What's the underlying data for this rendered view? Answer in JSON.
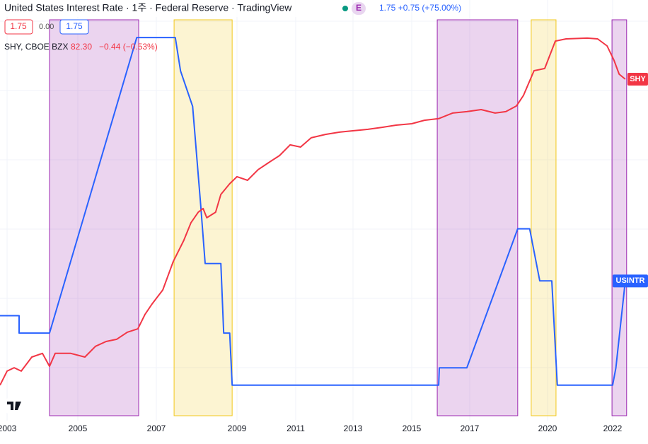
{
  "header": {
    "title": "United States Interest Rate · 1주 · Federal Reserve · TradingView",
    "badge": "E",
    "quote": "1.75 +0.75 (+75.00%)",
    "ohlc": [
      "1.75",
      "0.00",
      "1.75"
    ],
    "overlay_name": "SHY, CBOE BZX",
    "overlay_price": "82.30",
    "overlay_change": "−0.44 (−0.53%)"
  },
  "chart_data": {
    "type": "line",
    "xlim": [
      2002.8,
      2022.9
    ],
    "xticks": [
      2003,
      2005,
      2007,
      2009,
      2011,
      2013,
      2015,
      2017,
      2020,
      2022
    ],
    "ylim": [
      -0.26,
      5.79
    ],
    "y2lim": [
      65.35,
      86.23
    ],
    "series": [
      {
        "name": "USINTR",
        "color": "#2962ff",
        "x": [
          2002.8,
          2003.34,
          2003.34,
          2004.2,
          2006.5,
          2007.47,
          2007.6,
          2007.9,
          2008.1,
          2008.21,
          2008.6,
          2008.67,
          2008.82,
          2008.88,
          2015.93,
          2015.95,
          2016.9,
          2018.85,
          2019.31,
          2019.7,
          2020.13,
          2020.3,
          2022.0,
          2022.1,
          2022.39
        ],
        "values": [
          1.25,
          1.25,
          1.0,
          1.0,
          5.25,
          5.25,
          4.77,
          4.26,
          2.84,
          2.0,
          2.0,
          1.0,
          1.0,
          0.25,
          0.25,
          0.5,
          0.5,
          2.5,
          2.5,
          1.75,
          1.75,
          0.25,
          0.25,
          0.5,
          1.75
        ]
      },
      {
        "name": "SHY",
        "color": "#f23645",
        "axis": "y2",
        "x": [
          2002.8,
          2003.0,
          2003.2,
          2003.4,
          2003.7,
          2004.0,
          2004.2,
          2004.36,
          2004.8,
          2005.18,
          2005.45,
          2005.72,
          2005.99,
          2006.26,
          2006.53,
          2006.71,
          2006.89,
          2007.16,
          2007.42,
          2007.68,
          2007.86,
          2008.04,
          2008.16,
          2008.25,
          2008.47,
          2008.6,
          2008.82,
          2009.0,
          2009.36,
          2009.72,
          2010.08,
          2010.45,
          2010.81,
          2011.17,
          2011.54,
          2012.04,
          2012.53,
          2013.02,
          2013.51,
          2013.99,
          2014.47,
          2015.0,
          2015.44,
          2015.93,
          2016.41,
          2016.9,
          2017.44,
          2017.98,
          2018.39,
          2018.8,
          2019.07,
          2019.48,
          2019.89,
          2020.24,
          2020.57,
          2021.22,
          2021.54,
          2021.83,
          2022.04,
          2022.2,
          2022.39
        ],
        "values": [
          67.11,
          67.81,
          67.98,
          67.81,
          68.51,
          68.69,
          68.05,
          68.69,
          68.69,
          68.51,
          69.04,
          69.28,
          69.39,
          69.74,
          69.91,
          70.62,
          71.14,
          71.84,
          73.25,
          74.3,
          75.18,
          75.7,
          75.88,
          75.42,
          75.7,
          76.58,
          77.11,
          77.46,
          77.28,
          77.81,
          78.16,
          78.51,
          79.04,
          78.93,
          79.39,
          79.56,
          79.67,
          79.74,
          79.81,
          79.91,
          80.02,
          80.09,
          80.26,
          80.34,
          80.62,
          80.69,
          80.79,
          80.62,
          80.69,
          80.97,
          81.49,
          82.72,
          82.83,
          84.19,
          84.3,
          84.34,
          84.3,
          83.95,
          83.25,
          82.55,
          82.3
        ]
      }
    ],
    "shaded_regions": [
      {
        "start": 2004.2,
        "end": 2006.55,
        "color": "#9c27b0"
      },
      {
        "start": 2007.44,
        "end": 2008.88,
        "color": "#f2c81c"
      },
      {
        "start": 2015.88,
        "end": 2018.85,
        "color": "#9c27b0"
      },
      {
        "start": 2019.37,
        "end": 2020.26,
        "color": "#f2c81c"
      },
      {
        "start": 2021.98,
        "end": 2022.43,
        "color": "#9c27b0"
      }
    ],
    "grid": true
  }
}
